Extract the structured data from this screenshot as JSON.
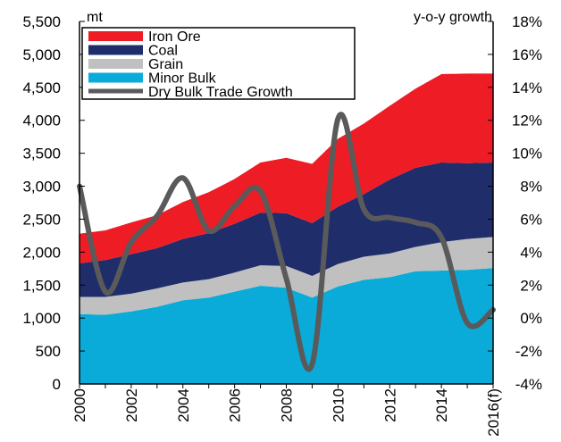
{
  "chart_data": {
    "type": "area",
    "stacked": true,
    "units": {
      "left": "mt",
      "right": "y-o-y growth"
    },
    "x": [
      "2000",
      "2001",
      "2002",
      "2003",
      "2004",
      "2005",
      "2006",
      "2007",
      "2008",
      "2009",
      "2010",
      "2011",
      "2012",
      "2013",
      "2014",
      "2015",
      "2016(f)"
    ],
    "x_tick_labels": [
      "2000",
      "2002",
      "2004",
      "2006",
      "2008",
      "2010",
      "2012",
      "2014",
      "2016(f)"
    ],
    "y_left": {
      "min": 0,
      "max": 5500,
      "step": 500,
      "tick_labels": [
        "0",
        "500",
        "1,000",
        "1,500",
        "2,000",
        "2,500",
        "3,000",
        "3,500",
        "4,000",
        "4,500",
        "5,000",
        "5,500"
      ]
    },
    "y_right": {
      "min": -4,
      "max": 18,
      "step": 2,
      "tick_labels": [
        "-4%",
        "-2%",
        "0%",
        "2%",
        "4%",
        "6%",
        "8%",
        "10%",
        "12%",
        "14%",
        "16%",
        "18%"
      ]
    },
    "series": [
      {
        "name": "Minor Bulk",
        "kind": "area",
        "axis": "left",
        "color": "#0aabd9",
        "values": [
          1060,
          1050,
          1100,
          1170,
          1270,
          1310,
          1400,
          1490,
          1460,
          1310,
          1480,
          1580,
          1620,
          1710,
          1720,
          1730,
          1760
        ]
      },
      {
        "name": "Grain",
        "kind": "area",
        "axis": "left",
        "color": "#c0c0c0",
        "values": [
          260,
          270,
          270,
          280,
          270,
          280,
          290,
          310,
          330,
          330,
          340,
          350,
          360,
          370,
          430,
          470,
          470
        ]
      },
      {
        "name": "Coal",
        "kind": "area",
        "axis": "left",
        "color": "#1f2d6b",
        "values": [
          510,
          560,
          600,
          610,
          660,
          700,
          740,
          800,
          800,
          800,
          870,
          950,
          1120,
          1200,
          1210,
          1150,
          1130
        ]
      },
      {
        "name": "Iron Ore",
        "kind": "area",
        "axis": "left",
        "color": "#ee1c25",
        "values": [
          450,
          450,
          480,
          500,
          560,
          620,
          680,
          760,
          840,
          900,
          1030,
          1070,
          1120,
          1200,
          1340,
          1360,
          1350
        ]
      },
      {
        "name": "Dry Bulk Trade Growth",
        "kind": "line",
        "axis": "right",
        "color": "#5a5a5a",
        "values": [
          8.0,
          1.6,
          4.6,
          6.2,
          8.5,
          5.3,
          6.8,
          7.7,
          2.4,
          -2.8,
          12.1,
          6.6,
          6.1,
          5.8,
          4.9,
          -0.3,
          0.5
        ]
      }
    ],
    "legend": {
      "placement": "top-left",
      "order": [
        "Iron Ore",
        "Coal",
        "Grain",
        "Minor Bulk",
        "Dry Bulk Trade Growth"
      ]
    },
    "grid": false
  }
}
